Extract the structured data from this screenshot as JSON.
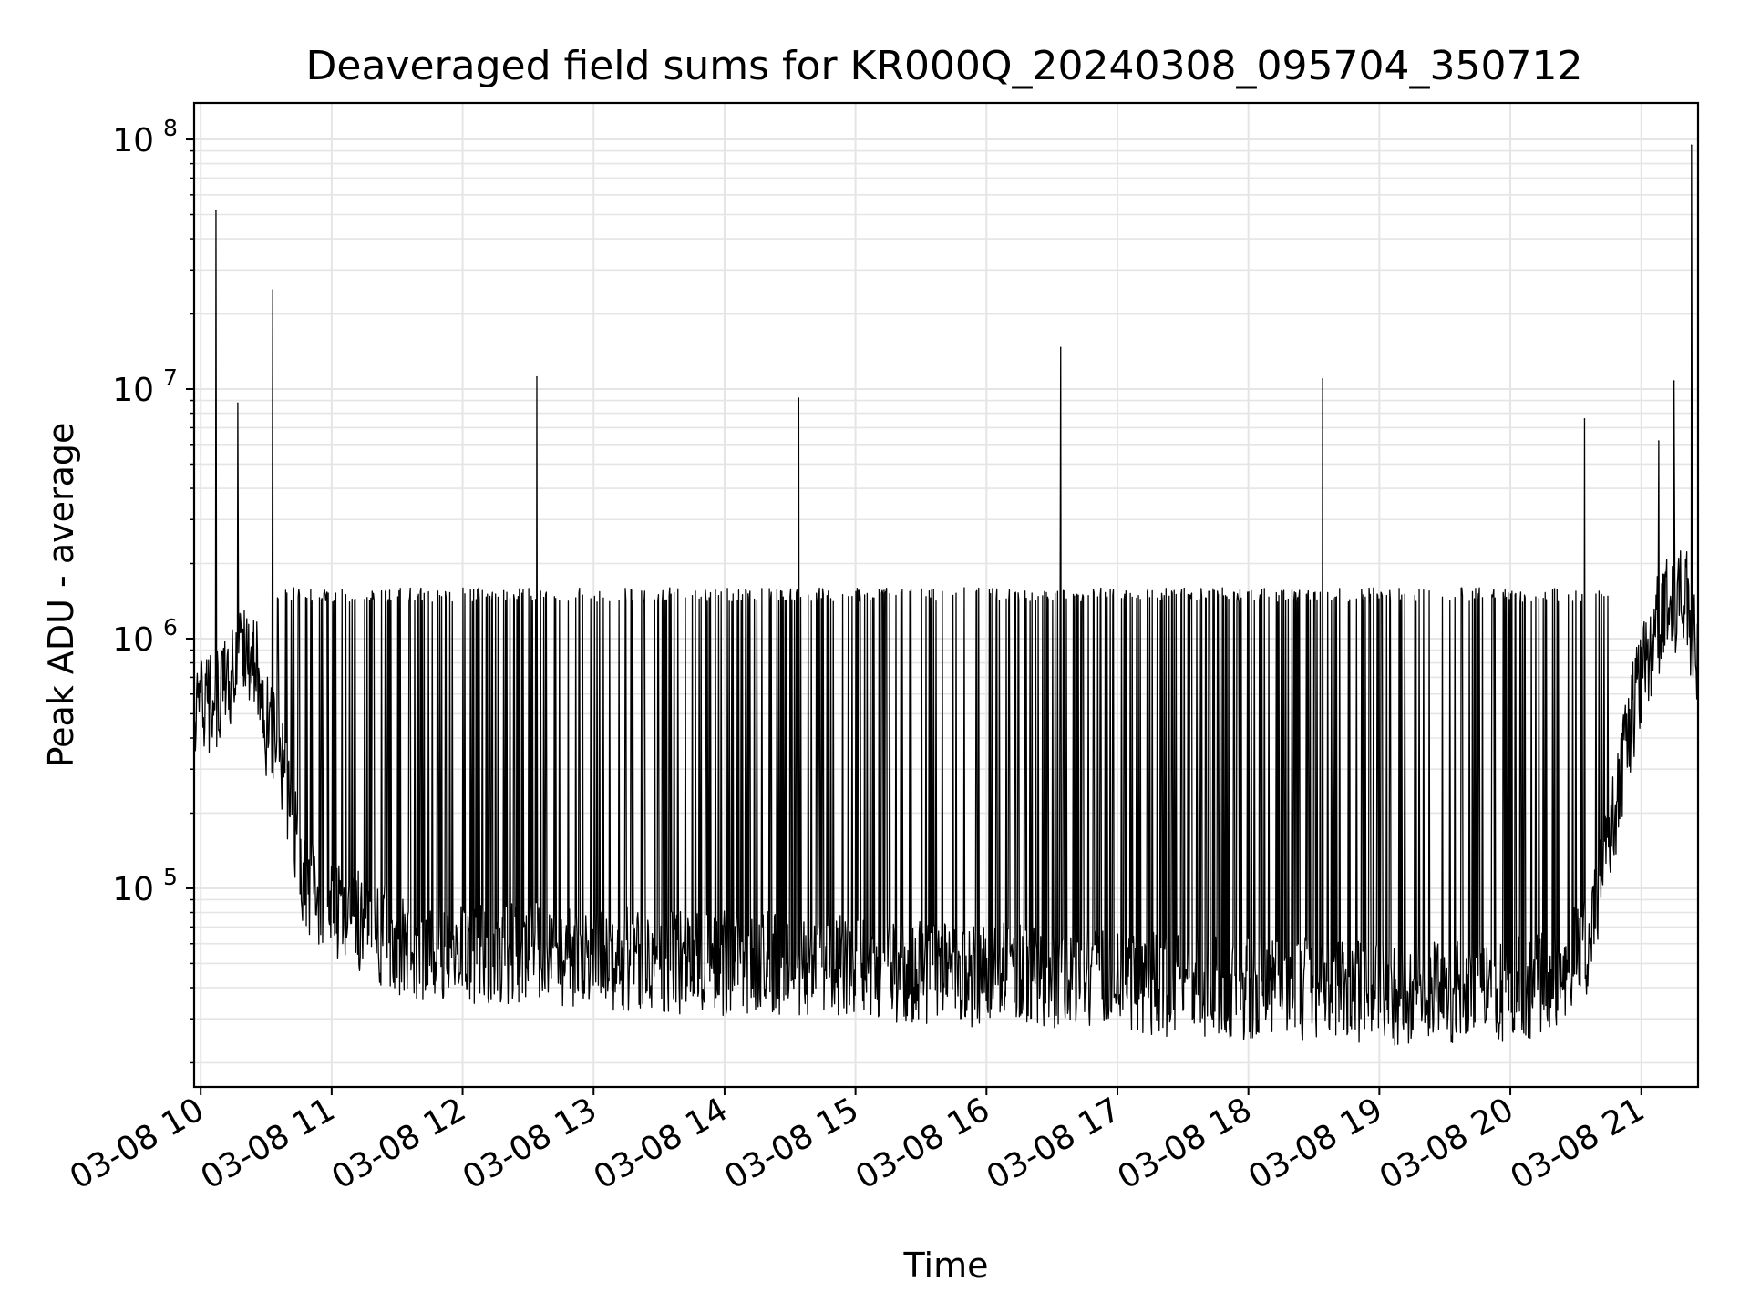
{
  "chart_data": {
    "type": "line",
    "title": "Deaveraged field sums for KR000Q_20240308_095704_350712",
    "xlabel": "Time",
    "ylabel": "Peak ADU - average",
    "yscale": "log",
    "ylim": [
      16000,
      140000000
    ],
    "xlim": [
      "2024-03-08T09:57",
      "2024-03-08T21:26"
    ],
    "grid": true,
    "grid_minor": true,
    "line_color": "#000000",
    "grid_color": "#e5e5e5",
    "x_ticks": [
      {
        "label": "03-08 10",
        "value": "2024-03-08T10:00"
      },
      {
        "label": "03-08 11",
        "value": "2024-03-08T11:00"
      },
      {
        "label": "03-08 12",
        "value": "2024-03-08T12:00"
      },
      {
        "label": "03-08 13",
        "value": "2024-03-08T13:00"
      },
      {
        "label": "03-08 14",
        "value": "2024-03-08T14:00"
      },
      {
        "label": "03-08 15",
        "value": "2024-03-08T15:00"
      },
      {
        "label": "03-08 16",
        "value": "2024-03-08T16:00"
      },
      {
        "label": "03-08 17",
        "value": "2024-03-08T17:00"
      },
      {
        "label": "03-08 18",
        "value": "2024-03-08T18:00"
      },
      {
        "label": "03-08 19",
        "value": "2024-03-08T19:00"
      },
      {
        "label": "03-08 20",
        "value": "2024-03-08T20:00"
      },
      {
        "label": "03-08 21",
        "value": "2024-03-08T21:00"
      }
    ],
    "y_ticks": [
      {
        "base": "10",
        "exp": "5",
        "value": 100000
      },
      {
        "base": "10",
        "exp": "6",
        "value": 1000000
      },
      {
        "base": "10",
        "exp": "7",
        "value": 10000000
      },
      {
        "base": "10",
        "exp": "8",
        "value": 100000000
      }
    ],
    "series": [
      {
        "x": [
          "2024-03-08T09:57",
          "2024-03-08T10:05",
          "2024-03-08T10:10",
          "2024-03-08T10:15",
          "2024-03-08T10:20",
          "2024-03-08T10:25",
          "2024-03-08T10:30",
          "2024-03-08T10:35",
          "2024-03-08T10:40",
          "2024-03-08T10:45",
          "2024-03-08T10:50",
          "2024-03-08T11:00",
          "2024-03-08T11:15",
          "2024-03-08T11:30",
          "2024-03-08T11:45",
          "2024-03-08T12:00",
          "2024-03-08T12:30",
          "2024-03-08T13:00",
          "2024-03-08T13:30",
          "2024-03-08T14:00",
          "2024-03-08T14:30",
          "2024-03-08T15:00",
          "2024-03-08T15:30",
          "2024-03-08T16:00",
          "2024-03-08T16:30",
          "2024-03-08T17:00",
          "2024-03-08T17:30",
          "2024-03-08T18:00",
          "2024-03-08T18:30",
          "2024-03-08T19:00",
          "2024-03-08T19:30",
          "2024-03-08T20:00",
          "2024-03-08T20:20",
          "2024-03-08T20:35",
          "2024-03-08T20:45",
          "2024-03-08T20:55",
          "2024-03-08T21:00",
          "2024-03-08T21:10",
          "2024-03-08T21:20",
          "2024-03-08T21:26"
        ],
        "values": [
          500000,
          550000,
          650000,
          750000,
          850000,
          800000,
          450000,
          380000,
          250000,
          130000,
          100000,
          85000,
          70000,
          60000,
          57000,
          55000,
          55000,
          53000,
          51000,
          50000,
          50000,
          48000,
          46000,
          45000,
          44000,
          42000,
          41000,
          40000,
          39000,
          38000,
          38000,
          39000,
          42000,
          60000,
          150000,
          450000,
          700000,
          1300000,
          1500000,
          800000
        ]
      }
    ],
    "spikes": [
      {
        "x": "2024-03-08T10:07",
        "value": 52000000
      },
      {
        "x": "2024-03-08T10:17",
        "value": 8800000
      },
      {
        "x": "2024-03-08T10:33",
        "value": 25000000
      },
      {
        "x": "2024-03-08T12:34",
        "value": 11200000
      },
      {
        "x": "2024-03-08T14:34",
        "value": 9200000
      },
      {
        "x": "2024-03-08T16:34",
        "value": 14700000
      },
      {
        "x": "2024-03-08T18:34",
        "value": 11000000
      },
      {
        "x": "2024-03-08T20:34",
        "value": 7600000
      },
      {
        "x": "2024-03-08T21:08",
        "value": 6200000
      },
      {
        "x": "2024-03-08T21:15",
        "value": 10800000
      },
      {
        "x": "2024-03-08T21:23",
        "value": 95000000
      }
    ],
    "dropout_band": {
      "low": 1400000,
      "high": 1600000
    }
  }
}
